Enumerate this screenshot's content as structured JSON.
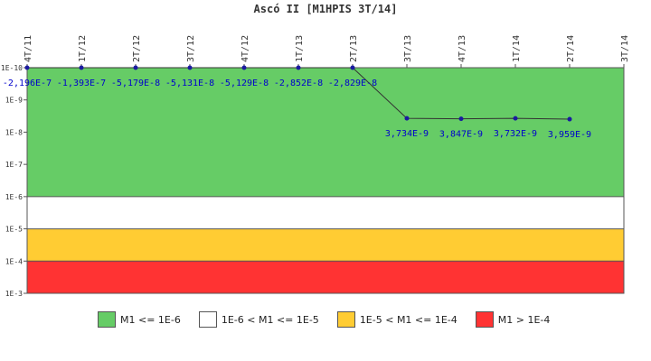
{
  "chart_data": {
    "type": "line",
    "title": "Ascó II [M1HPIS 3T/14]",
    "x_labels": [
      "4T/11",
      "1T/12",
      "2T/12",
      "3T/12",
      "4T/12",
      "1T/13",
      "2T/13",
      "3T/13",
      "4T/13",
      "1T/14",
      "2T/14",
      "3T/14"
    ],
    "y_scale": "log",
    "y_ticks": [
      "1E-10",
      "1E-9",
      "1E-8",
      "1E-7",
      "1E-6",
      "1E-5",
      "1E-4",
      "1E-3"
    ],
    "ylim": [
      1e-10,
      0.001
    ],
    "y_inverted": true,
    "series": [
      {
        "values": [
          1e-10,
          1e-10,
          1e-10,
          1e-10,
          1e-10,
          1e-10,
          1e-10,
          3.734e-09,
          3.847e-09,
          3.732e-09,
          3.959e-09
        ],
        "labels": [
          "-2,196E-7",
          "-1,393E-7",
          "-5,179E-8",
          "-5,131E-8",
          "-5,129E-8",
          "-2,852E-8",
          "-2,829E-8",
          "3,734E-9",
          "3,847E-9",
          "3,732E-9",
          "3,959E-9"
        ]
      }
    ],
    "bands": [
      {
        "from": 1e-10,
        "to": 1e-06,
        "color": "#66cc66",
        "label": "M1 <= 1E-6"
      },
      {
        "from": 1e-06,
        "to": 1e-05,
        "color": "#ffffff",
        "label": "1E-6 < M1 <= 1E-5"
      },
      {
        "from": 1e-05,
        "to": 0.0001,
        "color": "#ffcc33",
        "label": "1E-5 < M1 <= 1E-4"
      },
      {
        "from": 0.0001,
        "to": 0.001,
        "color": "#ff3333",
        "label": "M1 > 1E-4"
      }
    ],
    "line_color": "#333333",
    "point_color": "#1a1aa0",
    "label_color": "#0000cc"
  }
}
